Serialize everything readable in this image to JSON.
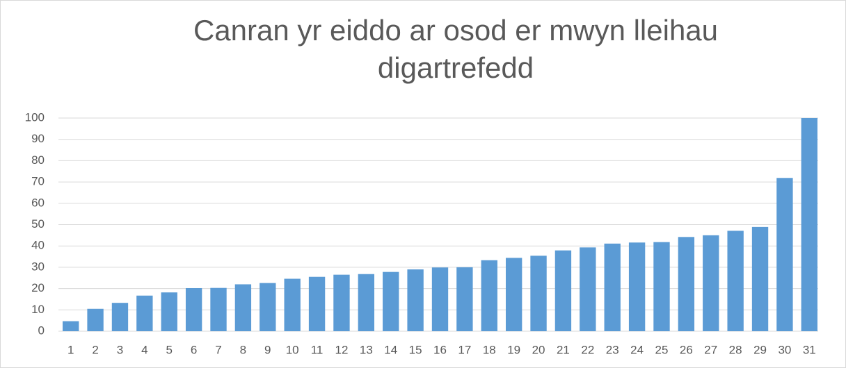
{
  "chart_data": {
    "type": "bar",
    "title": "Canran yr eiddo ar osod er mwyn lleihau digartrefedd",
    "categories": [
      "1",
      "2",
      "3",
      "4",
      "5",
      "6",
      "7",
      "8",
      "9",
      "10",
      "11",
      "12",
      "13",
      "14",
      "15",
      "16",
      "17",
      "18",
      "19",
      "20",
      "21",
      "22",
      "23",
      "24",
      "25",
      "26",
      "27",
      "28",
      "29",
      "30",
      "31"
    ],
    "values": [
      4.7,
      10.5,
      13.3,
      16.7,
      18.2,
      20.2,
      20.3,
      22,
      22.6,
      24.6,
      25.5,
      26.5,
      26.8,
      27.8,
      29,
      29.9,
      30,
      33.3,
      34.4,
      35.4,
      37.9,
      39.3,
      41.1,
      41.6,
      41.8,
      44.2,
      45,
      47.1,
      48.9,
      71.9,
      100
    ],
    "color": "#5b9bd5",
    "ylim": [
      0,
      100
    ],
    "yticks": [
      0,
      10,
      20,
      30,
      40,
      50,
      60,
      70,
      80,
      90,
      100
    ],
    "grid": true
  }
}
